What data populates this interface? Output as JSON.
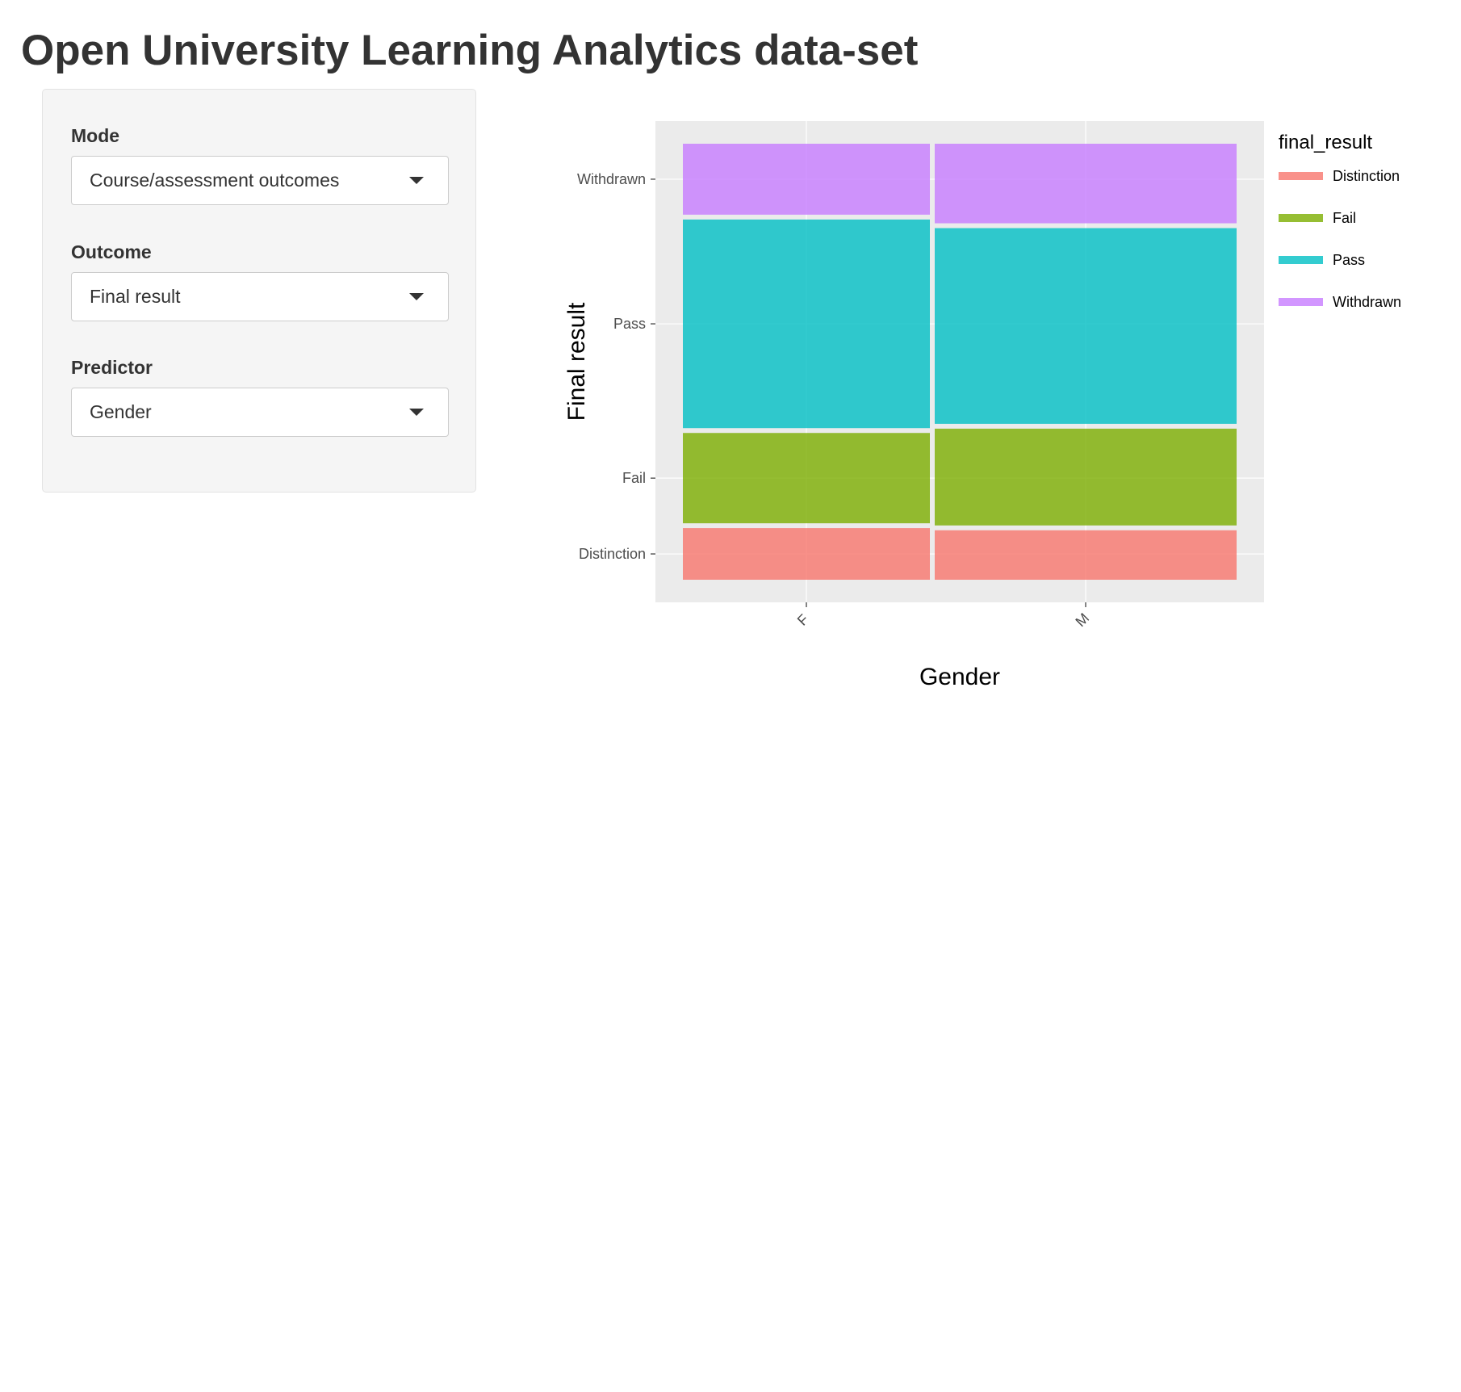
{
  "app": {
    "title": "Open University Learning Analytics data-set"
  },
  "sidebar": {
    "controls": [
      {
        "label": "Mode",
        "value": "Course/assessment outcomes"
      },
      {
        "label": "Outcome",
        "value": "Final result"
      },
      {
        "label": "Predictor",
        "value": "Gender"
      }
    ]
  },
  "chart_data": {
    "type": "bar",
    "subtype": "mosaic",
    "title": "",
    "xlabel": "Gender",
    "ylabel": "Final result",
    "categories": [
      "F",
      "M"
    ],
    "category_widths": [
      0.45,
      0.55
    ],
    "series": [
      {
        "name": "Distinction",
        "values": [
          0.12,
          0.115
        ],
        "color": "#F8766D"
      },
      {
        "name": "Fail",
        "values": [
          0.21,
          0.225
        ],
        "color": "#7CAE00"
      },
      {
        "name": "Pass",
        "values": [
          0.485,
          0.455
        ],
        "color": "#00BFC4"
      },
      {
        "name": "Withdrawn",
        "values": [
          0.165,
          0.185
        ],
        "color": "#C77CFF"
      }
    ],
    "y_tick_labels": [
      "Distinction",
      "Fail",
      "Pass",
      "Withdrawn"
    ],
    "legend": {
      "title": "final_result",
      "position": "right",
      "entries": [
        "Distinction",
        "Fail",
        "Pass",
        "Withdrawn"
      ]
    },
    "grid": true,
    "panel_background": "#EBEBEB"
  }
}
